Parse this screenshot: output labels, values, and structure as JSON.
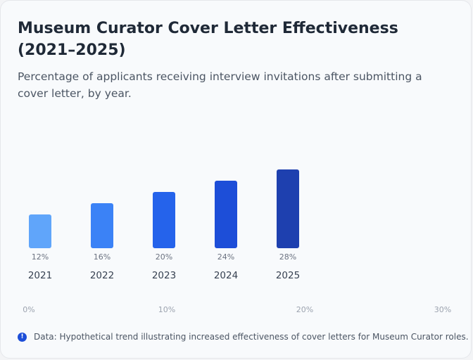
{
  "title": "Museum Curator Cover Letter Effectiveness (2021–2025)",
  "subtitle": "Percentage of applicants receiving interview invitations after submitting a cover letter, by year.",
  "note": "Data: Hypothetical trend illustrating increased effectiveness of cover letters for Museum Curator roles.",
  "colors": {
    "bars": [
      "#60a5fa",
      "#3b82f6",
      "#2563eb",
      "#1d4ed8",
      "#1e40af"
    ],
    "value_label": "#6b7280",
    "category_label": "#374151",
    "axis_label": "#9ca3af",
    "note_icon": "#1d4ed8"
  },
  "chart_data": {
    "type": "bar",
    "categories": [
      "2021",
      "2022",
      "2023",
      "2024",
      "2025"
    ],
    "values": [
      12,
      16,
      20,
      24,
      28
    ],
    "value_labels": [
      "12%",
      "16%",
      "20%",
      "24%",
      "28%"
    ],
    "ylim": [
      0,
      30
    ],
    "axis_ticks": [
      "0%",
      "10%",
      "20%",
      "30%"
    ],
    "grid": false,
    "legend": "none"
  }
}
